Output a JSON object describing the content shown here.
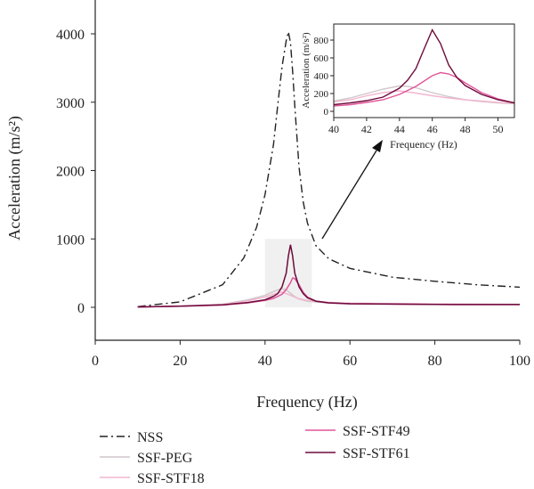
{
  "chart_data": [
    {
      "type": "line",
      "xlabel": "Frequency (Hz)",
      "ylabel": "Acceleration (m/s²)",
      "xlim": [
        0,
        100
      ],
      "ylim": [
        -500,
        4500
      ],
      "xticks": [
        0,
        20,
        40,
        60,
        80,
        100
      ],
      "yticks": [
        0,
        1000,
        2000,
        3000,
        4000
      ],
      "grid": false,
      "legend": "bottom",
      "highlight_region": {
        "x": [
          40,
          51
        ],
        "y": [
          0,
          1000
        ]
      },
      "series": [
        {
          "name": "NSS",
          "color": "#222222",
          "dash": "dashdot",
          "x": [
            10,
            20,
            30,
            35,
            38,
            40,
            42,
            43,
            44,
            45,
            45.5,
            46,
            46.5,
            47,
            48,
            49,
            50,
            52,
            55,
            60,
            70,
            80,
            90,
            100
          ],
          "values": [
            10,
            80,
            330,
            720,
            1170,
            1650,
            2380,
            2960,
            3520,
            3900,
            4030,
            3870,
            3450,
            2950,
            2050,
            1540,
            1230,
            900,
            710,
            570,
            440,
            380,
            330,
            295
          ]
        },
        {
          "name": "SSF-PEG",
          "color": "#cfc6cb",
          "dash": "solid",
          "x": [
            10,
            20,
            30,
            36,
            40,
            42,
            43,
            44,
            45,
            46,
            47,
            48,
            50,
            55,
            60,
            80,
            100
          ],
          "values": [
            5,
            18,
            45,
            110,
            175,
            230,
            255,
            270,
            255,
            205,
            155,
            120,
            90,
            60,
            50,
            42,
            40
          ]
        },
        {
          "name": "SSF-STF18",
          "color": "#f3b6cf",
          "dash": "solid",
          "x": [
            10,
            20,
            30,
            36,
            40,
            42,
            43,
            44,
            45,
            46,
            47,
            48,
            50,
            55,
            60,
            80,
            100
          ],
          "values": [
            5,
            16,
            40,
            95,
            150,
            190,
            210,
            222,
            200,
            175,
            150,
            125,
            100,
            72,
            60,
            48,
            42
          ]
        },
        {
          "name": "SSF-STF49",
          "color": "#e0569a",
          "dash": "solid",
          "x": [
            10,
            20,
            30,
            36,
            40,
            42,
            44,
            45,
            46,
            46.5,
            47,
            48,
            49,
            50,
            52,
            55,
            60,
            80,
            100
          ],
          "values": [
            5,
            15,
            32,
            65,
            100,
            130,
            190,
            260,
            360,
            430,
            420,
            330,
            220,
            150,
            90,
            65,
            52,
            42,
            40
          ]
        },
        {
          "name": "SSF-STF61",
          "color": "#6e0b3c",
          "dash": "solid",
          "x": [
            10,
            20,
            30,
            36,
            40,
            42,
            43,
            44,
            45,
            45.5,
            46,
            46.5,
            47,
            48,
            49,
            50,
            52,
            55,
            60,
            80,
            100
          ],
          "values": [
            5,
            15,
            35,
            70,
            110,
            160,
            200,
            300,
            500,
            750,
            915,
            750,
            500,
            300,
            200,
            140,
            90,
            65,
            52,
            42,
            40
          ]
        }
      ]
    },
    {
      "type": "line",
      "title": "",
      "xlabel": "Frequency (Hz)",
      "ylabel": "Acceleration (m/s²)",
      "xlim": [
        40,
        51
      ],
      "ylim": [
        -50,
        900
      ],
      "xticks": [
        40,
        42,
        44,
        46,
        48,
        50
      ],
      "yticks": [
        0,
        200,
        400,
        600,
        800
      ],
      "grid": false,
      "series": [
        {
          "name": "SSF-PEG",
          "color": "#cfc6cb",
          "x": [
            40,
            41,
            42,
            43,
            44,
            44.5,
            45,
            46,
            47,
            48,
            49,
            50,
            51
          ],
          "values": [
            115,
            150,
            200,
            250,
            285,
            280,
            265,
            210,
            165,
            130,
            110,
            95,
            85
          ]
        },
        {
          "name": "SSF-STF18",
          "color": "#f3b6cf",
          "x": [
            40,
            41,
            42,
            43,
            44,
            45,
            46,
            47,
            48,
            49,
            50,
            51
          ],
          "values": [
            105,
            130,
            175,
            210,
            230,
            205,
            175,
            150,
            130,
            115,
            100,
            90
          ]
        },
        {
          "name": "SSF-STF49",
          "color": "#e0569a",
          "x": [
            40,
            41,
            42,
            43,
            44,
            45,
            46,
            46.5,
            47,
            47.5,
            48,
            49,
            50,
            51
          ],
          "values": [
            60,
            75,
            100,
            130,
            190,
            280,
            400,
            435,
            420,
            380,
            320,
            210,
            140,
            95
          ]
        },
        {
          "name": "SSF-STF61",
          "color": "#6e0b3c",
          "x": [
            40,
            41,
            42,
            43,
            44,
            44.5,
            45,
            45.5,
            46,
            46.5,
            47,
            47.5,
            48,
            49,
            50,
            51
          ],
          "values": [
            75,
            95,
            120,
            160,
            260,
            350,
            480,
            700,
            915,
            760,
            520,
            380,
            290,
            190,
            130,
            95
          ]
        }
      ]
    }
  ]
}
